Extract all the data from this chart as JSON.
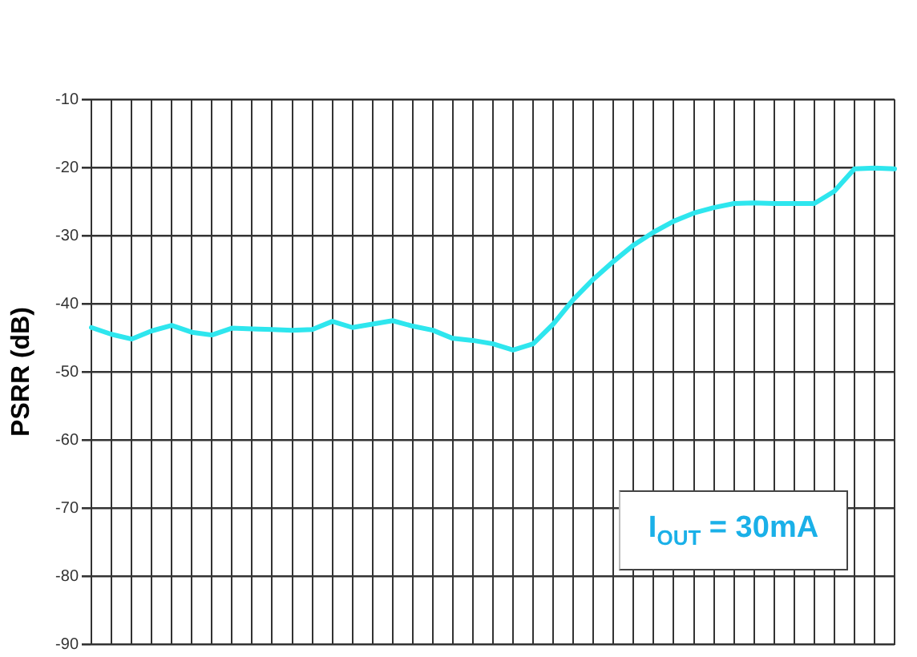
{
  "chart_data": {
    "type": "line",
    "ylabel": "PSRR (dB)",
    "categories": [
      null,
      null,
      null,
      null,
      null,
      null,
      null,
      null,
      null,
      null,
      null,
      null,
      null,
      null,
      null,
      null,
      null,
      null,
      null,
      null,
      null,
      null,
      null,
      null,
      null,
      null,
      null,
      null,
      null,
      null,
      null,
      null,
      null,
      null,
      null,
      null,
      null,
      null,
      null,
      null,
      null
    ],
    "series": [
      {
        "color": "#2ee6ee",
        "values": [
          -43.5,
          -44.5,
          -45.2,
          -44.0,
          -43.2,
          -44.2,
          -44.6,
          -43.6,
          -43.7,
          -43.8,
          -43.9,
          -43.8,
          -42.6,
          -43.5,
          -43.0,
          -42.5,
          -43.3,
          -43.9,
          -45.1,
          -45.4,
          -45.9,
          -46.8,
          -45.9,
          -43.0,
          -39.4,
          -36.4,
          -33.8,
          -31.4,
          -29.5,
          -27.9,
          -26.7,
          -25.9,
          -25.3,
          -25.2,
          -25.3,
          -25.3,
          -25.3,
          -23.5,
          -20.2,
          -20.1,
          -20.2
        ]
      }
    ],
    "ylim": [
      -90,
      -10
    ],
    "yticks": [
      -90,
      -80,
      -70,
      -60,
      -50,
      -40,
      -30,
      -20,
      -10
    ],
    "grid": true,
    "marker": "none",
    "line_style": "solid",
    "legend": false,
    "annotations": [
      "I$_{OUT}$ = 30mA"
    ]
  }
}
